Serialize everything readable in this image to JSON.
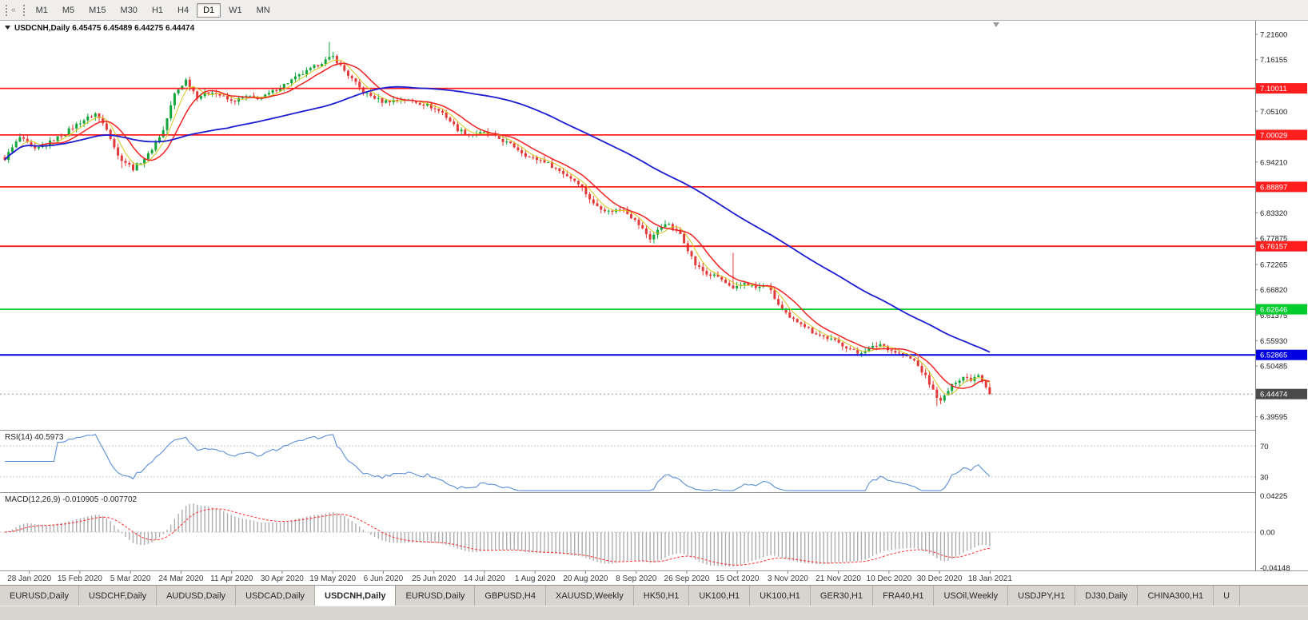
{
  "toolbar": {
    "timeframes": [
      "M1",
      "M5",
      "M15",
      "M30",
      "H1",
      "H4",
      "D1",
      "W1",
      "MN"
    ],
    "active_timeframe": "D1",
    "collapse_glyph": "«"
  },
  "window": {
    "symbol_title": "USDCNH,Daily",
    "ohlc_display": [
      "6.45475",
      "6.45489",
      "6.44275",
      "6.44474"
    ]
  },
  "chart_data": {
    "type": "candlestick",
    "title": "USDCNH,Daily",
    "open": "6.45475",
    "high": "6.45489",
    "low": "6.44275",
    "close": "6.44474",
    "ylim": [
      6.368,
      7.245
    ],
    "num_bars": 262,
    "noise": 0.004,
    "wick": 0.009,
    "up_color": "#12a53a",
    "down_color": "#e23a3a",
    "bar_anchors": [
      [
        0,
        6.95
      ],
      [
        4,
        6.995
      ],
      [
        8,
        6.968
      ],
      [
        12,
        6.985
      ],
      [
        16,
        7.005
      ],
      [
        20,
        7.028
      ],
      [
        24,
        7.046
      ],
      [
        27,
        7.015
      ],
      [
        30,
        6.955
      ],
      [
        34,
        6.928
      ],
      [
        38,
        6.958
      ],
      [
        42,
        7.01
      ],
      [
        45,
        7.088
      ],
      [
        48,
        7.118
      ],
      [
        51,
        7.082
      ],
      [
        55,
        7.094
      ],
      [
        60,
        7.072
      ],
      [
        64,
        7.082
      ],
      [
        68,
        7.079
      ],
      [
        72,
        7.098
      ],
      [
        76,
        7.118
      ],
      [
        80,
        7.136
      ],
      [
        84,
        7.156
      ],
      [
        87,
        7.168
      ],
      [
        90,
        7.138
      ],
      [
        95,
        7.092
      ],
      [
        100,
        7.072
      ],
      [
        105,
        7.076
      ],
      [
        108,
        7.073
      ],
      [
        112,
        7.064
      ],
      [
        116,
        7.048
      ],
      [
        120,
        7.012
      ],
      [
        123,
        7.002
      ],
      [
        127,
        7.004
      ],
      [
        131,
        6.992
      ],
      [
        135,
        6.975
      ],
      [
        139,
        6.952
      ],
      [
        143,
        6.944
      ],
      [
        148,
        6.918
      ],
      [
        152,
        6.898
      ],
      [
        156,
        6.852
      ],
      [
        160,
        6.836
      ],
      [
        164,
        6.842
      ],
      [
        168,
        6.808
      ],
      [
        171,
        6.778
      ],
      [
        175,
        6.812
      ],
      [
        179,
        6.788
      ],
      [
        183,
        6.722
      ],
      [
        186,
        6.702
      ],
      [
        189,
        6.696
      ],
      [
        193,
        6.668
      ],
      [
        196,
        6.684
      ],
      [
        199,
        6.672
      ],
      [
        202,
        6.678
      ],
      [
        205,
        6.636
      ],
      [
        208,
        6.606
      ],
      [
        211,
        6.598
      ],
      [
        214,
        6.578
      ],
      [
        217,
        6.568
      ],
      [
        220,
        6.558
      ],
      [
        223,
        6.546
      ],
      [
        226,
        6.532
      ],
      [
        229,
        6.542
      ],
      [
        232,
        6.552
      ],
      [
        235,
        6.538
      ],
      [
        238,
        6.528
      ],
      [
        241,
        6.516
      ],
      [
        244,
        6.482
      ],
      [
        246,
        6.452
      ],
      [
        248,
        6.428
      ],
      [
        250,
        6.452
      ],
      [
        252,
        6.472
      ],
      [
        254,
        6.482
      ],
      [
        256,
        6.476
      ],
      [
        258,
        6.488
      ],
      [
        260,
        6.462
      ],
      [
        261,
        6.445
      ]
    ],
    "spikes": [
      {
        "bar": 31,
        "down": 0.012
      },
      {
        "bar": 86,
        "up": 0.026
      },
      {
        "bar": 193,
        "up": 0.062
      },
      {
        "bar": 247,
        "down": 0.014
      }
    ],
    "moving_averages": [
      {
        "name": "fast-ma-yellow",
        "window": 5,
        "color": "#d6c51c",
        "width": 1
      },
      {
        "name": "medium-ma-red",
        "window": 10,
        "color": "#f02222",
        "width": 1.5
      },
      {
        "name": "slow-ma-blue",
        "window": 60,
        "color": "#1c1cd0",
        "width": 1.8
      }
    ],
    "horizontal_lines": [
      {
        "price": 7.10011,
        "label": "7.10011",
        "color": "#ff1e1e",
        "width": 1.8
      },
      {
        "price": 7.00029,
        "label": "7.00029",
        "color": "#ff1e1e",
        "width": 1.8
      },
      {
        "price": 6.88897,
        "label": "6.88897",
        "color": "#ff1e1e",
        "width": 1.8
      },
      {
        "price": 6.76157,
        "label": "6.76157",
        "color": "#ff1e1e",
        "width": 1.8
      },
      {
        "price": 6.62646,
        "label": "6.62646",
        "color": "#00cc2e",
        "width": 1.8
      },
      {
        "price": 6.52865,
        "label": "6.52865",
        "color": "#0000e0",
        "width": 2
      }
    ],
    "current_price": {
      "value": 6.44474,
      "label": "6.44474",
      "box_color": "#4a4a4a",
      "line_color": "#999999"
    },
    "y_axis_labels": [
      "7.21600",
      "7.16155",
      "7.05100",
      "6.94210",
      "6.83320",
      "6.77875",
      "6.72265",
      "6.66820",
      "6.61375",
      "6.55930",
      "6.50485",
      "6.39595"
    ],
    "x_ticks": {
      "labels": [
        "28 Jan 2020",
        "15 Feb 2020",
        "5 Mar 2020",
        "24 Mar 2020",
        "11 Apr 2020",
        "30 Apr 2020",
        "19 May 2020",
        "6 Jun 2020",
        "25 Jun 2020",
        "14 Jul 2020",
        "1 Aug 2020",
        "20 Aug 2020",
        "8 Sep 2020",
        "26 Sep 2020",
        "15 Oct 2020",
        "3 Nov 2020",
        "21 Nov 2020",
        "10 Dec 2020",
        "30 Dec 2020",
        "18 Jan 2021"
      ],
      "first_bar": 6.5,
      "bar_step": 13.4
    },
    "indicators": {
      "rsi": {
        "label": "RSI(14)",
        "value": "40.5973",
        "period": 14,
        "levels": [
          70,
          30
        ],
        "range": [
          10,
          90
        ],
        "color": "#5b8fd6",
        "level_color": "#c8c8c8"
      },
      "macd": {
        "label": "MACD(12,26,9)",
        "main_value": "-0.010905",
        "signal_value": "-0.007702",
        "fast": 12,
        "slow": 26,
        "signal": 9,
        "axis_labels": [
          "0.04225",
          "0.00",
          "-0.04148"
        ],
        "range": [
          -0.0445,
          0.0455
        ],
        "bar_color": "#adadad",
        "signal_color": "#ff3030"
      }
    }
  },
  "tabs": [
    {
      "label": "EURUSD,Daily",
      "active": false
    },
    {
      "label": "USDCHF,Daily",
      "active": false
    },
    {
      "label": "AUDUSD,Daily",
      "active": false
    },
    {
      "label": "USDCAD,Daily",
      "active": false
    },
    {
      "label": "USDCNH,Daily",
      "active": true
    },
    {
      "label": "EURUSD,Daily",
      "active": false
    },
    {
      "label": "GBPUSD,H4",
      "active": false
    },
    {
      "label": "XAUUSD,Weekly",
      "active": false
    },
    {
      "label": "HK50,H1",
      "active": false
    },
    {
      "label": "UK100,H1",
      "active": false
    },
    {
      "label": "UK100,H1",
      "active": false
    },
    {
      "label": "GER30,H1",
      "active": false
    },
    {
      "label": "FRA40,H1",
      "active": false
    },
    {
      "label": "USOil,Weekly",
      "active": false
    },
    {
      "label": "USDJPY,H1",
      "active": false
    },
    {
      "label": "DJ30,Daily",
      "active": false
    },
    {
      "label": "CHINA300,H1",
      "active": false
    },
    {
      "label": "U",
      "active": false
    }
  ]
}
